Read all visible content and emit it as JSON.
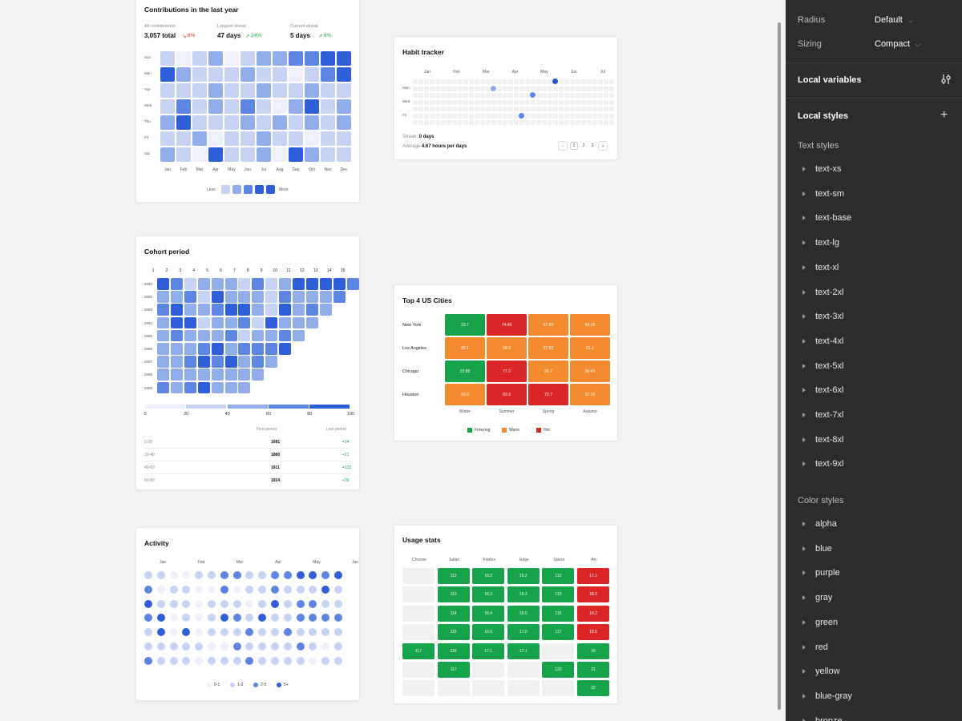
{
  "contrib": {
    "title": "Contributions in the last year",
    "stats": [
      {
        "label": "All contributions",
        "value": "3,057 total",
        "delta": "8%",
        "dir": "down"
      },
      {
        "label": "Longest streak",
        "value": "47 days",
        "delta": "24%",
        "dir": "up"
      },
      {
        "label": "Current streak",
        "value": "5 days",
        "delta": "6%",
        "dir": "up"
      }
    ],
    "days": [
      "Sun",
      "Mon",
      "Tue",
      "Wed",
      "Thu",
      "Fri",
      "Sat"
    ],
    "months": [
      "Jan",
      "Feb",
      "Mar",
      "Apr",
      "May",
      "Jun",
      "Jul",
      "Aug",
      "Sep",
      "Oct",
      "Nov",
      "Dec"
    ],
    "levels": [
      [
        1,
        0,
        1,
        2,
        0,
        1,
        2,
        2,
        3,
        3,
        4,
        4
      ],
      [
        4,
        2,
        1,
        1,
        1,
        2,
        1,
        1,
        0,
        1,
        3,
        4
      ],
      [
        1,
        1,
        1,
        2,
        1,
        1,
        2,
        1,
        1,
        2,
        1,
        1
      ],
      [
        1,
        3,
        1,
        2,
        1,
        3,
        1,
        0,
        2,
        4,
        1,
        2
      ],
      [
        2,
        4,
        1,
        1,
        1,
        2,
        1,
        2,
        1,
        2,
        1,
        2
      ],
      [
        1,
        1,
        2,
        0,
        1,
        1,
        2,
        1,
        1,
        0,
        1,
        1
      ],
      [
        2,
        1,
        0,
        4,
        1,
        1,
        2,
        0,
        4,
        2,
        1,
        1
      ]
    ],
    "legend_less": "Less",
    "legend_more": "More"
  },
  "habit": {
    "title": "Habit tracker",
    "months": [
      "Jan",
      "Feb",
      "Mar",
      "Apr",
      "May",
      "Jun",
      "Jul"
    ],
    "days": [
      "Mon",
      "Wed",
      "Fri"
    ],
    "streak_label": "Streak:",
    "streak_value": "0 days",
    "avg_label": "Average",
    "avg_value": "4.67 hours per days",
    "pages": [
      "1",
      "2",
      "3"
    ]
  },
  "cohort": {
    "title": "Cohort period",
    "columns": [
      "1",
      "2",
      "3",
      "4",
      "5",
      "6",
      "7",
      "8",
      "9",
      "10",
      "11",
      "12",
      "13",
      "14",
      "15"
    ],
    "rows": [
      "2091",
      "2092",
      "2093",
      "2094",
      "2095",
      "2096",
      "2097",
      "2098",
      "2099"
    ],
    "levels": [
      [
        3,
        2,
        0,
        1,
        1,
        1,
        0,
        2,
        0,
        1,
        3,
        3,
        3,
        3,
        2
      ],
      [
        1,
        1,
        2,
        0,
        3,
        1,
        1,
        1,
        0,
        2,
        1,
        1,
        1,
        2
      ],
      [
        2,
        3,
        1,
        1,
        2,
        3,
        3,
        1,
        0,
        3,
        1,
        2,
        1
      ],
      [
        1,
        3,
        3,
        0,
        1,
        1,
        2,
        0,
        3,
        1,
        1,
        1
      ],
      [
        1,
        2,
        1,
        1,
        1,
        2,
        0,
        1,
        1,
        2,
        1
      ],
      [
        1,
        1,
        1,
        2,
        3,
        1,
        2,
        2,
        2,
        3
      ],
      [
        1,
        1,
        2,
        3,
        2,
        3,
        1,
        2,
        1
      ],
      [
        1,
        1,
        1,
        1,
        1,
        1,
        1,
        1
      ],
      [
        2,
        1,
        2,
        3,
        1,
        1,
        1
      ]
    ],
    "scale": [
      "0",
      "20",
      "40",
      "60",
      "80",
      "100"
    ],
    "table_headers": [
      "First period",
      "Last period"
    ],
    "table_rows": [
      {
        "range": "0-20",
        "first": "1681",
        "last": "+14"
      },
      {
        "range": "20-40",
        "first": "1880",
        "last": "+21"
      },
      {
        "range": "40-60",
        "first": "1911",
        "last": "+132"
      },
      {
        "range": "60-80",
        "first": "1924",
        "last": "+36"
      }
    ]
  },
  "cities": {
    "title": "Top 4 US Cities",
    "seasons": [
      "Winter",
      "Summer",
      "Spring",
      "Autumn"
    ],
    "rows": [
      {
        "city": "New York",
        "values": [
          "33.7",
          "74.49",
          "57.82",
          "54.19"
        ],
        "kinds": [
          "f",
          "h",
          "w",
          "w"
        ]
      },
      {
        "city": "Los Angeles",
        "values": [
          "60.1",
          "58.2",
          "57.82",
          "61.1"
        ],
        "kinds": [
          "w",
          "w",
          "w",
          "w"
        ]
      },
      {
        "city": "Chicago",
        "values": [
          "22.89",
          "77.2",
          "55.7",
          "56.43"
        ],
        "kinds": [
          "f",
          "h",
          "w",
          "w"
        ]
      },
      {
        "city": "Houston",
        "values": [
          "53.0",
          "83.3",
          "72.7",
          "57.15"
        ],
        "kinds": [
          "w",
          "h",
          "h",
          "w"
        ]
      }
    ],
    "legend": [
      {
        "label": "Freezing",
        "color": "#16a34a"
      },
      {
        "label": "Warm",
        "color": "#f28a30"
      },
      {
        "label": "Hot",
        "color": "#dc2626"
      }
    ]
  },
  "activity": {
    "title": "Activity",
    "months": [
      "Jan",
      "Feb",
      "Mar",
      "Apr",
      "May",
      "Jun"
    ],
    "levels": [
      [
        1,
        1,
        0,
        0,
        1,
        1,
        2,
        2,
        1,
        1,
        2,
        2,
        3,
        3,
        2,
        3
      ],
      [
        2,
        0,
        1,
        1,
        0,
        0,
        2,
        0,
        1,
        1,
        2,
        1,
        1,
        1,
        3,
        1
      ],
      [
        3,
        1,
        1,
        1,
        0,
        1,
        1,
        1,
        0,
        1,
        3,
        1,
        2,
        2,
        1,
        1
      ],
      [
        2,
        3,
        0,
        1,
        0,
        1,
        3,
        2,
        1,
        3,
        1,
        1,
        2,
        2,
        2,
        2
      ],
      [
        1,
        3,
        0,
        3,
        0,
        1,
        1,
        1,
        2,
        1,
        1,
        2,
        1,
        1,
        1,
        1
      ],
      [
        1,
        1,
        1,
        1,
        1,
        0,
        0,
        2,
        1,
        1,
        1,
        1,
        2,
        1,
        0,
        1
      ],
      [
        2,
        1,
        1,
        1,
        0,
        1,
        1,
        1,
        2,
        1,
        1,
        1,
        1,
        0,
        1,
        1
      ]
    ],
    "legend": [
      "0-1",
      "1-2",
      "2-5",
      "5+"
    ]
  },
  "usage": {
    "title": "Usage stats",
    "browsers": [
      "Chrome",
      "Safari",
      "Firefox",
      "Edge",
      "Opera",
      "Arc"
    ],
    "columns": [
      [
        null,
        null,
        null,
        null,
        "117",
        null,
        null
      ],
      [
        "112",
        "113",
        "114",
        "115",
        "116",
        "117",
        null
      ],
      [
        "16.2",
        "16.3",
        "16.4",
        "16.6",
        "17.1",
        null,
        null
      ],
      [
        "16.2",
        "16.3",
        "16.5",
        "17.0",
        "17.1",
        null,
        null
      ],
      [
        "112",
        "113",
        "115",
        "117",
        null,
        "120",
        null
      ],
      [
        "17.1",
        "18.2",
        "19.2",
        "19.5",
        "20",
        "21",
        "22"
      ]
    ]
  },
  "panel": {
    "radius_label": "Radius",
    "radius_value": "Default",
    "sizing_label": "Sizing",
    "sizing_value": "Compact",
    "local_variables": "Local variables",
    "local_styles": "Local styles",
    "text_styles": "Text styles",
    "text_items": [
      "text-xs",
      "text-sm",
      "text-base",
      "text-lg",
      "text-xl",
      "text-2xl",
      "text-3xl",
      "text-4xl",
      "text-5xl",
      "text-6xl",
      "text-7xl",
      "text-8xl",
      "text-9xl"
    ],
    "color_styles": "Color styles",
    "color_items": [
      "alpha",
      "blue",
      "purple",
      "gray",
      "green",
      "red",
      "yellow",
      "blue-gray",
      "bronze"
    ]
  },
  "colors": {
    "blue_levels": [
      "#eef1fb",
      "#c6d3f3",
      "#91aeeb",
      "#5d86e2",
      "#2e5fd8"
    ],
    "empty": "#f0f0f0",
    "green": "#16a34a",
    "orange": "#f28a30",
    "red": "#dc2626",
    "panel_bg": "#2c2c2c"
  }
}
